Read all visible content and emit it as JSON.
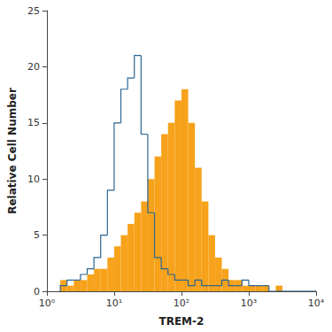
{
  "chart_data": {
    "type": "histogram",
    "x_label": "TREM-2",
    "y_label": "Relative Cell Number",
    "log": "x",
    "grid": false,
    "xlim": [
      1,
      10000
    ],
    "xticks": [
      {
        "value": 1,
        "label": "10⁰"
      },
      {
        "value": 10,
        "label": "10¹"
      },
      {
        "value": 100,
        "label": "10²"
      },
      {
        "value": 1000,
        "label": "10³"
      },
      {
        "value": 10000,
        "label": "10⁴"
      }
    ],
    "ylim": [
      0,
      25
    ],
    "yticks": [
      0,
      5,
      10,
      15,
      20,
      25
    ],
    "bins": [
      1.585,
      1.995,
      2.512,
      3.162,
      3.981,
      5.012,
      6.31,
      7.943,
      10,
      12.59,
      15.85,
      19.95,
      25.12,
      31.62,
      39.81,
      50.12,
      63.1,
      79.43,
      100,
      125.9,
      158.5,
      199.5,
      251.2,
      316.2,
      398.1,
      501.2,
      631,
      794.3,
      1000,
      1259,
      1585,
      1995,
      2512,
      3162,
      3981,
      5012,
      6310,
      7943,
      10000
    ],
    "series": [
      {
        "type": "bar",
        "color": "#f7a21b",
        "values": [
          1,
          0.5,
          1,
          1,
          1.5,
          2,
          2,
          3,
          4,
          5,
          6,
          7,
          8,
          10,
          12,
          14,
          15,
          17,
          18,
          15,
          11,
          8,
          5,
          3,
          2,
          1,
          1,
          0.5,
          0.5,
          0.5,
          0.5,
          0,
          0.5,
          0,
          0,
          0,
          0,
          0
        ]
      },
      {
        "type": "step",
        "color": "#2b6591",
        "values": [
          0.5,
          1,
          1,
          1.5,
          2,
          3,
          5,
          9,
          15,
          18,
          19,
          21,
          14,
          7,
          3,
          2,
          1.5,
          1,
          1,
          0.5,
          1,
          0.5,
          0.5,
          0.5,
          1,
          0.5,
          0.5,
          1,
          0.5,
          0.5,
          0.5,
          0,
          0,
          0,
          0,
          0,
          0,
          0
        ]
      }
    ]
  }
}
